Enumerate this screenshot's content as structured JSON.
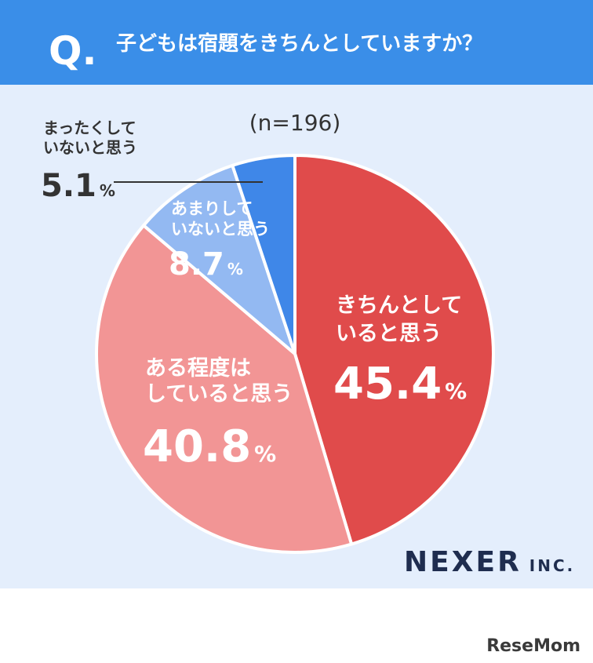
{
  "chart_data": {
    "type": "pie",
    "question_mark": "Q.",
    "title": "子どもは宿題をきちんとしていますか？",
    "subtitle": "(n=196)",
    "categories": [
      [
        "きちんとして",
        "いると思う"
      ],
      [
        "ある程度は",
        "していると思う"
      ],
      [
        "あまりして",
        "いないと思う"
      ],
      [
        "まったくして",
        "いないと思う"
      ]
    ],
    "values": [
      45.4,
      40.8,
      8.7,
      5.1
    ],
    "unit": "%",
    "colors": [
      "#e04b4b",
      "#f29595",
      "#93b9f2",
      "#3f87e8"
    ],
    "brand": "NEXER",
    "brand_suffix": "INC.",
    "source": "ReseMom"
  }
}
